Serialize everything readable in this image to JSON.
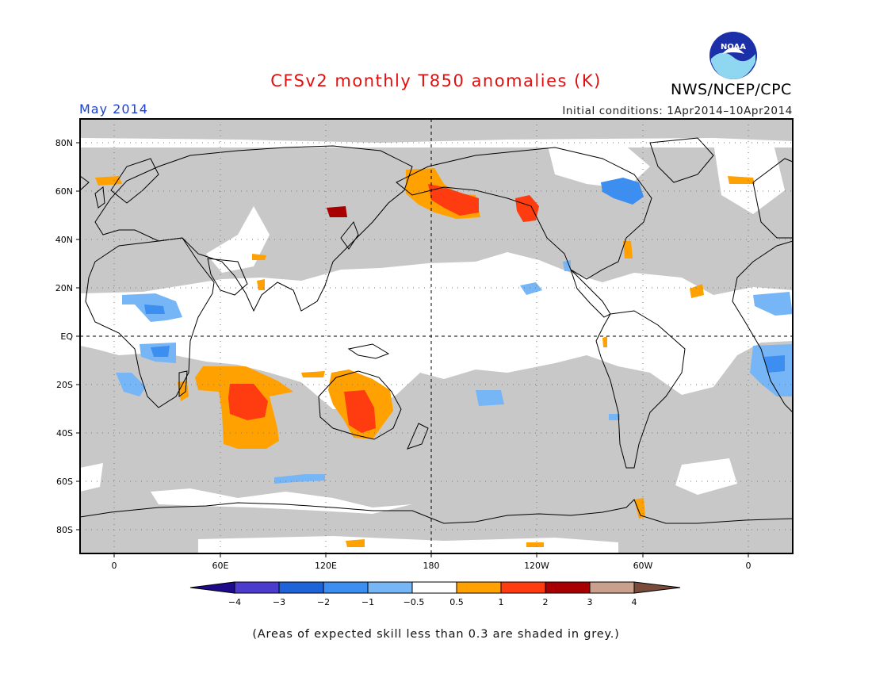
{
  "header": {
    "title": "CFSv2 monthly T850 anomalies (K)",
    "month": "May 2014",
    "initial_conditions": "Initial conditions: 1Apr2014–10Apr2014",
    "agency": "NWS/NCEP/CPC",
    "logo_text": "NOAA"
  },
  "map": {
    "lat_labels": [
      "80N",
      "60N",
      "40N",
      "20N",
      "EQ",
      "20S",
      "40S",
      "60S",
      "80S"
    ],
    "lon_labels": [
      "0",
      "60E",
      "120E",
      "180",
      "120W",
      "60W",
      "0"
    ],
    "background_color": "#c8c8c8",
    "skill_ok_color": "#ffffff"
  },
  "colorbar": {
    "tick_labels": [
      "−4",
      "−3",
      "−2",
      "−1",
      "−0.5",
      "0.5",
      "1",
      "2",
      "3",
      "4"
    ],
    "colors": [
      "#1e0b8c",
      "#4b3ccd",
      "#1f63d8",
      "#3c8ef0",
      "#77b6f6",
      "#ffffff",
      "#ffa100",
      "#ff3b10",
      "#a80000",
      "#c9a08c",
      "#7a4a3a"
    ]
  },
  "footnote": "(Areas of expected skill less than 0.3 are shaded in grey.)"
}
